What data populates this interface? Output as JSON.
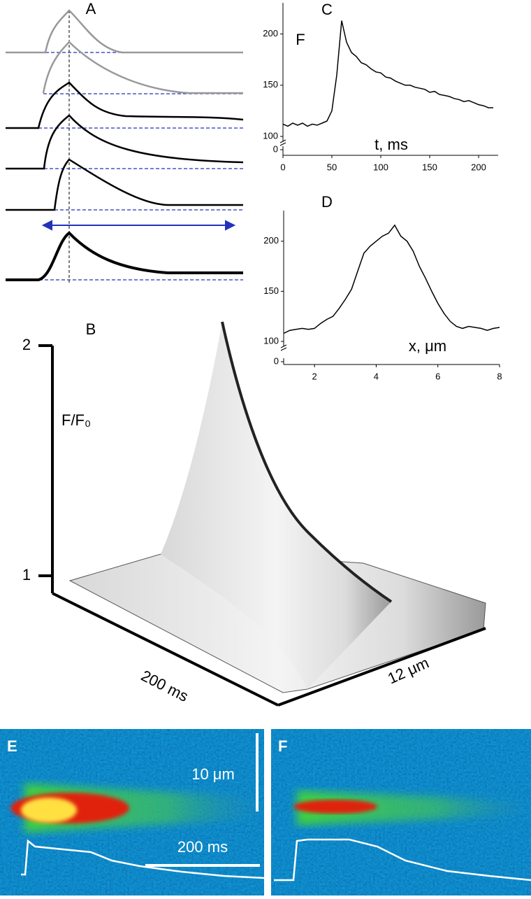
{
  "panel_a": {
    "title": "A"
  },
  "chart_data": [
    {
      "type": "line",
      "title": "C",
      "y_label": "F",
      "x_label": "t, ms",
      "x": [
        0,
        5,
        10,
        15,
        20,
        25,
        30,
        35,
        40,
        45,
        50,
        55,
        60,
        65,
        70,
        75,
        80,
        85,
        90,
        95,
        100,
        105,
        110,
        115,
        120,
        125,
        130,
        135,
        140,
        145,
        150,
        155,
        160,
        165,
        170,
        175,
        180,
        185,
        190,
        195,
        200,
        205,
        210,
        215
      ],
      "values": [
        112,
        110,
        113,
        111,
        113,
        110,
        112,
        111,
        113,
        115,
        125,
        160,
        213,
        192,
        182,
        178,
        172,
        170,
        166,
        163,
        162,
        158,
        157,
        154,
        152,
        150,
        150,
        148,
        147,
        146,
        143,
        144,
        141,
        140,
        139,
        137,
        136,
        134,
        135,
        133,
        131,
        130,
        128,
        128
      ],
      "color": "#000000",
      "xlim": [
        0,
        220
      ],
      "xticks": [
        0,
        50,
        100,
        150,
        200
      ],
      "ylim": [
        100,
        225
      ],
      "yticks": [
        100,
        150,
        200
      ],
      "y_break_tick": 0
    },
    {
      "type": "line",
      "title": "D",
      "x_label": "x, μm",
      "x": [
        1.0,
        1.2,
        1.4,
        1.6,
        1.8,
        2.0,
        2.2,
        2.4,
        2.6,
        2.8,
        3.0,
        3.2,
        3.4,
        3.6,
        3.8,
        4.0,
        4.2,
        4.4,
        4.6,
        4.8,
        5.0,
        5.2,
        5.4,
        5.6,
        5.8,
        6.0,
        6.2,
        6.4,
        6.6,
        6.8,
        7.0,
        7.2,
        7.4,
        7.6,
        7.8,
        8.0
      ],
      "values": [
        108,
        111,
        112,
        113,
        112,
        113,
        118,
        122,
        125,
        133,
        142,
        152,
        170,
        188,
        195,
        200,
        205,
        208,
        216,
        205,
        200,
        190,
        175,
        163,
        150,
        138,
        128,
        120,
        115,
        113,
        115,
        114,
        113,
        111,
        113,
        114
      ],
      "color": "#000000",
      "xlim": [
        1,
        8
      ],
      "xticks": [
        2,
        4,
        6,
        8
      ],
      "ylim": [
        100,
        225
      ],
      "yticks": [
        100,
        150,
        200
      ],
      "y_break_tick": 0
    }
  ],
  "panel_b": {
    "title": "B",
    "y_label": "F/F₀",
    "yticks": [
      1,
      2
    ],
    "time_label": "200 ms",
    "space_label": "12 μm"
  },
  "panel_e": {
    "title": "E",
    "length_scale": "10 μm",
    "time_scale": "200 ms"
  },
  "panel_f": {
    "title": "F"
  }
}
